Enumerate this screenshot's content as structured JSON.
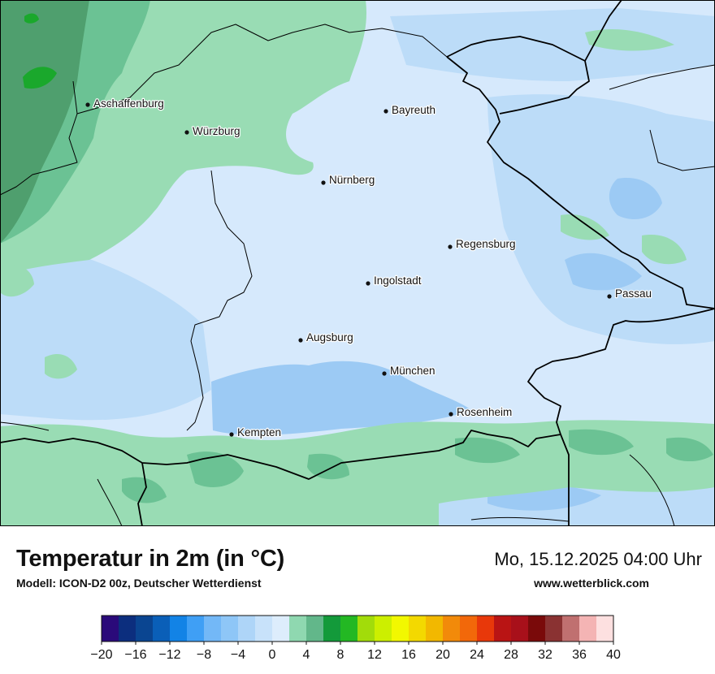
{
  "title": "Temperatur in 2m (in °C)",
  "subtitle": "Modell: ICON-D2 00z, Deutscher Wetterdienst",
  "datetime": "Mo, 15.12.2025 04:00 Uhr",
  "website": "www.wetterblick.com",
  "cities": [
    {
      "id": "aschaffenburg",
      "name": "Aschaffenburg"
    },
    {
      "id": "wuerzburg",
      "name": "Würzburg"
    },
    {
      "id": "bayreuth",
      "name": "Bayreuth"
    },
    {
      "id": "nuernberg",
      "name": "Nürnberg"
    },
    {
      "id": "regensburg",
      "name": "Regensburg"
    },
    {
      "id": "ingolstadt",
      "name": "Ingolstadt"
    },
    {
      "id": "passau",
      "name": "Passau"
    },
    {
      "id": "augsburg",
      "name": "Augsburg"
    },
    {
      "id": "muenchen",
      "name": "München"
    },
    {
      "id": "rosenheim",
      "name": "Rosenheim"
    },
    {
      "id": "kempten",
      "name": "Kempten"
    }
  ],
  "legend": {
    "unit": "°C",
    "min": -20,
    "max": 40,
    "step": 2,
    "tick_labels": [
      "−20",
      "−16",
      "−12",
      "−8",
      "−4",
      "0",
      "4",
      "8",
      "12",
      "16",
      "20",
      "24",
      "28",
      "32",
      "36",
      "40"
    ],
    "colors": [
      "#2a0a7a",
      "#0c2e7e",
      "#0a4591",
      "#0a5fb8",
      "#1283e6",
      "#3f9ff5",
      "#73b8f7",
      "#8ec6f7",
      "#aed5f8",
      "#c8e2fa",
      "#ddedfc",
      "#8fd8b0",
      "#62b78a",
      "#139a3a",
      "#23b823",
      "#a2dc0a",
      "#ccef00",
      "#f2f800",
      "#f3d900",
      "#f2b800",
      "#f28a0a",
      "#f2680a",
      "#e8380a",
      "#b91414",
      "#a8101a",
      "#7a0a0a",
      "#8a3232",
      "#c07070",
      "#f4b4b4",
      "#fde0e0"
    ]
  },
  "map_colors": {
    "pale_blue": "#d6e9fc",
    "light_blue": "#bcdcf8",
    "mid_blue": "#9ccaf4",
    "light_green": "#99dcb4",
    "mid_green": "#6bc294",
    "dark_green": "#4f9f6e",
    "bright_green": "#1aa82c",
    "border": "#000000"
  }
}
